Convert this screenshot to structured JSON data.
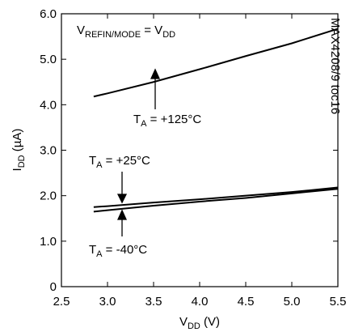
{
  "chart_data": {
    "type": "line",
    "annotation": [
      "V",
      "REFIN/MODE",
      " = V",
      "DD"
    ],
    "side_note": "MAX4208/9 toc16",
    "x_label": [
      "V",
      "DD",
      " (V)"
    ],
    "y_label": [
      "I",
      "DD",
      " (µA)"
    ],
    "x": [
      2.85,
      3.0,
      3.5,
      4.0,
      4.5,
      5.0,
      5.5
    ],
    "series": [
      {
        "label": [
          "T",
          "A",
          " = +125°C"
        ],
        "color": "#000000",
        "values": [
          4.18,
          4.25,
          4.5,
          4.78,
          5.07,
          5.35,
          5.67
        ]
      },
      {
        "label": [
          "T",
          "A",
          " = +25°C"
        ],
        "color": "#000000",
        "values": [
          1.75,
          1.77,
          1.85,
          1.92,
          2.0,
          2.08,
          2.18
        ]
      },
      {
        "label": [
          "T",
          "A",
          " = -40°C"
        ],
        "color": "#000000",
        "values": [
          1.65,
          1.68,
          1.78,
          1.87,
          1.95,
          2.05,
          2.15
        ]
      }
    ],
    "xlim": [
      2.5,
      5.5
    ],
    "xticks": [
      2.5,
      {
        "value": 3,
        "label": "3.0"
      },
      3.5,
      {
        "value": 4,
        "label": "4.0"
      },
      4.5,
      {
        "value": 5,
        "label": "5.0"
      },
      5.5
    ],
    "ylim": [
      0,
      6
    ],
    "yticks": [
      0,
      {
        "value": 1,
        "label": "1.0"
      },
      {
        "value": 2,
        "label": "2.0"
      },
      {
        "value": 3,
        "label": "3.0"
      },
      {
        "value": 4,
        "label": "4.0"
      },
      {
        "value": 5,
        "label": "5.0"
      },
      {
        "value": 6,
        "label": "6.0"
      }
    ]
  }
}
